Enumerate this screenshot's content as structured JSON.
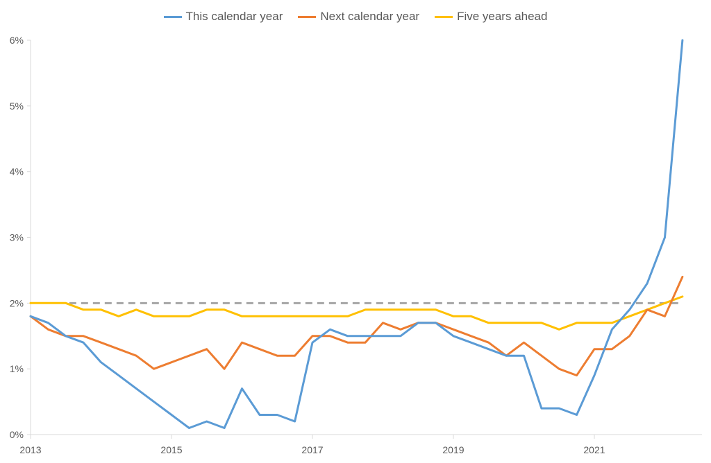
{
  "chart_data": {
    "type": "line",
    "title": "",
    "xlabel": "",
    "ylabel": "",
    "ylim": [
      0,
      6
    ],
    "xlim": [
      2013.0,
      2022.35
    ],
    "y_ticks": [
      "0%",
      "1%",
      "2%",
      "3%",
      "4%",
      "5%",
      "6%"
    ],
    "x_ticks": [
      "2013",
      "2015",
      "2017",
      "2019",
      "2021"
    ],
    "x_tick_values": [
      2013,
      2015,
      2017,
      2019,
      2021
    ],
    "grid": false,
    "legend_position": "top-center",
    "series": [
      {
        "name": "This calendar year",
        "color": "#5B9BD5",
        "x": [
          2013.0,
          2013.25,
          2013.5,
          2013.75,
          2014.0,
          2014.25,
          2014.5,
          2014.75,
          2015.0,
          2015.25,
          2015.5,
          2015.75,
          2016.0,
          2016.25,
          2016.5,
          2016.75,
          2017.0,
          2017.25,
          2017.5,
          2017.75,
          2018.0,
          2018.25,
          2018.5,
          2018.75,
          2019.0,
          2019.25,
          2019.5,
          2019.75,
          2020.0,
          2020.25,
          2020.5,
          2020.75,
          2021.0,
          2021.25,
          2021.5,
          2021.75,
          2022.0,
          2022.25
        ],
        "values": [
          1.8,
          1.7,
          1.5,
          1.4,
          1.1,
          0.9,
          0.7,
          0.5,
          0.3,
          0.1,
          0.2,
          0.1,
          0.7,
          0.3,
          0.3,
          0.2,
          1.4,
          1.6,
          1.5,
          1.5,
          1.5,
          1.5,
          1.7,
          1.7,
          1.5,
          1.4,
          1.3,
          1.2,
          1.2,
          0.4,
          0.4,
          0.3,
          0.9,
          1.6,
          1.9,
          2.3,
          3.0,
          6.0
        ]
      },
      {
        "name": "Next calendar year",
        "color": "#ED7D31",
        "x": [
          2013.0,
          2013.25,
          2013.5,
          2013.75,
          2014.0,
          2014.25,
          2014.5,
          2014.75,
          2015.0,
          2015.25,
          2015.5,
          2015.75,
          2016.0,
          2016.25,
          2016.5,
          2016.75,
          2017.0,
          2017.25,
          2017.5,
          2017.75,
          2018.0,
          2018.25,
          2018.5,
          2018.75,
          2019.0,
          2019.25,
          2019.5,
          2019.75,
          2020.0,
          2020.25,
          2020.5,
          2020.75,
          2021.0,
          2021.25,
          2021.5,
          2021.75,
          2022.0,
          2022.25
        ],
        "values": [
          1.8,
          1.6,
          1.5,
          1.5,
          1.4,
          1.3,
          1.2,
          1.0,
          1.1,
          1.2,
          1.3,
          1.0,
          1.4,
          1.3,
          1.2,
          1.2,
          1.5,
          1.5,
          1.4,
          1.4,
          1.7,
          1.6,
          1.7,
          1.7,
          1.6,
          1.5,
          1.4,
          1.2,
          1.4,
          1.2,
          1.0,
          0.9,
          1.3,
          1.3,
          1.5,
          1.9,
          1.8,
          2.4
        ]
      },
      {
        "name": "Five years ahead",
        "color": "#FFC000",
        "x": [
          2013.0,
          2013.25,
          2013.5,
          2013.75,
          2014.0,
          2014.25,
          2014.5,
          2014.75,
          2015.0,
          2015.25,
          2015.5,
          2015.75,
          2016.0,
          2016.25,
          2016.5,
          2016.75,
          2017.0,
          2017.25,
          2017.5,
          2017.75,
          2018.0,
          2018.25,
          2018.5,
          2018.75,
          2019.0,
          2019.25,
          2019.5,
          2019.75,
          2020.0,
          2020.25,
          2020.5,
          2020.75,
          2021.0,
          2021.25,
          2021.5,
          2021.75,
          2022.0,
          2022.25
        ],
        "values": [
          2.0,
          2.0,
          2.0,
          1.9,
          1.9,
          1.8,
          1.9,
          1.8,
          1.8,
          1.8,
          1.9,
          1.9,
          1.8,
          1.8,
          1.8,
          1.8,
          1.8,
          1.8,
          1.8,
          1.9,
          1.9,
          1.9,
          1.9,
          1.9,
          1.8,
          1.8,
          1.7,
          1.7,
          1.7,
          1.7,
          1.6,
          1.7,
          1.7,
          1.7,
          1.8,
          1.9,
          2.0,
          2.1
        ]
      }
    ],
    "reference_line": {
      "value": 2.0,
      "x_start": 2013.55,
      "x_end": 2022.2,
      "color": "#A5A5A5",
      "style": "dashed"
    }
  }
}
